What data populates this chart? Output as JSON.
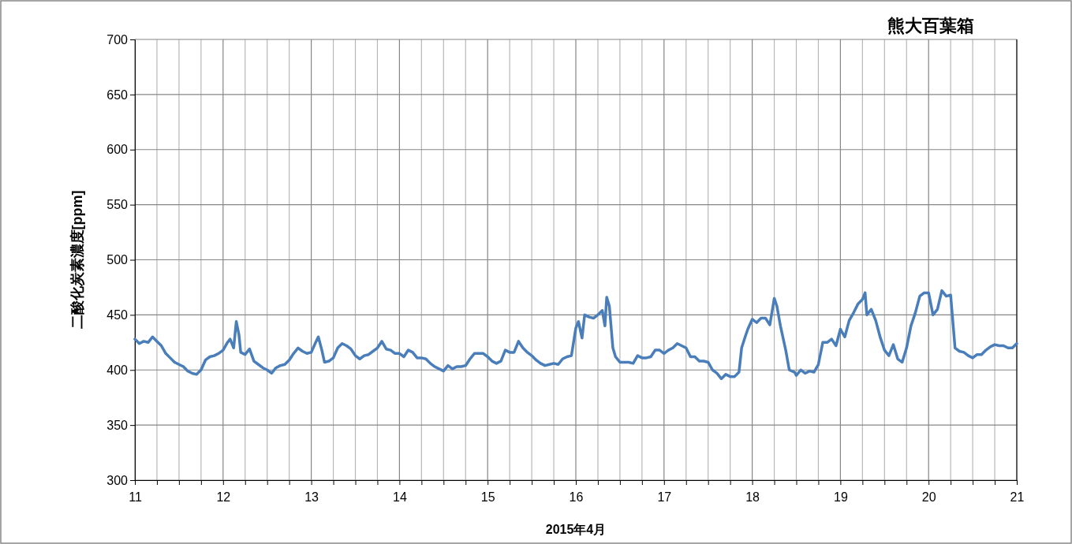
{
  "chart_data": {
    "type": "line",
    "title": "熊大百葉箱",
    "xlabel": "2015年4月",
    "ylabel": "二酸化炭素濃度[ppm]",
    "grid": true,
    "marker": "none",
    "line_style": "solid",
    "xlim": [
      11,
      21
    ],
    "ylim": [
      300,
      700
    ],
    "xticks": [
      11,
      {
        "value": 11.25,
        "label": null
      },
      {
        "value": 11.5,
        "label": null
      },
      {
        "value": 11.75,
        "label": null
      },
      12,
      {
        "value": 12.25,
        "label": null
      },
      {
        "value": 12.5,
        "label": null
      },
      {
        "value": 12.75,
        "label": null
      },
      13,
      {
        "value": 13.25,
        "label": null
      },
      {
        "value": 13.5,
        "label": null
      },
      {
        "value": 13.75,
        "label": null
      },
      14,
      {
        "value": 14.25,
        "label": null
      },
      {
        "value": 14.5,
        "label": null
      },
      {
        "value": 14.75,
        "label": null
      },
      15,
      {
        "value": 15.25,
        "label": null
      },
      {
        "value": 15.5,
        "label": null
      },
      {
        "value": 15.75,
        "label": null
      },
      16,
      {
        "value": 16.25,
        "label": null
      },
      {
        "value": 16.5,
        "label": null
      },
      {
        "value": 16.75,
        "label": null
      },
      17,
      {
        "value": 17.25,
        "label": null
      },
      {
        "value": 17.5,
        "label": null
      },
      {
        "value": 17.75,
        "label": null
      },
      18,
      {
        "value": 18.25,
        "label": null
      },
      {
        "value": 18.5,
        "label": null
      },
      {
        "value": 18.75,
        "label": null
      },
      19,
      {
        "value": 19.25,
        "label": null
      },
      {
        "value": 19.5,
        "label": null
      },
      {
        "value": 19.75,
        "label": null
      },
      20,
      {
        "value": 20.25,
        "label": null
      },
      {
        "value": 20.5,
        "label": null
      },
      {
        "value": 20.75,
        "label": null
      },
      21
    ],
    "yticks": [
      300,
      350,
      400,
      450,
      500,
      550,
      600,
      650,
      700
    ],
    "x": [
      11.0,
      11.05,
      11.1,
      11.15,
      11.2,
      11.25,
      11.3,
      11.35,
      11.4,
      11.45,
      11.5,
      11.55,
      11.6,
      11.65,
      11.7,
      11.75,
      11.8,
      11.85,
      11.9,
      11.95,
      12.0,
      12.05,
      12.08,
      12.12,
      12.15,
      12.18,
      12.2,
      12.25,
      12.3,
      12.35,
      12.4,
      12.45,
      12.5,
      12.55,
      12.6,
      12.65,
      12.7,
      12.75,
      12.8,
      12.85,
      12.9,
      12.95,
      13.0,
      13.05,
      13.08,
      13.12,
      13.15,
      13.2,
      13.25,
      13.3,
      13.35,
      13.4,
      13.45,
      13.5,
      13.55,
      13.6,
      13.65,
      13.7,
      13.75,
      13.8,
      13.85,
      13.9,
      13.95,
      14.0,
      14.05,
      14.1,
      14.15,
      14.2,
      14.25,
      14.3,
      14.35,
      14.4,
      14.45,
      14.5,
      14.55,
      14.6,
      14.65,
      14.7,
      14.75,
      14.8,
      14.85,
      14.9,
      14.95,
      15.0,
      15.05,
      15.1,
      15.15,
      15.2,
      15.25,
      15.3,
      15.35,
      15.4,
      15.45,
      15.5,
      15.55,
      15.6,
      15.65,
      15.7,
      15.75,
      15.8,
      15.85,
      15.9,
      15.95,
      16.0,
      16.03,
      16.07,
      16.1,
      16.15,
      16.2,
      16.25,
      16.3,
      16.33,
      16.35,
      16.38,
      16.42,
      16.45,
      16.5,
      16.55,
      16.6,
      16.65,
      16.7,
      16.75,
      16.8,
      16.85,
      16.9,
      16.95,
      17.0,
      17.05,
      17.1,
      17.15,
      17.2,
      17.25,
      17.3,
      17.35,
      17.4,
      17.45,
      17.5,
      17.55,
      17.6,
      17.65,
      17.7,
      17.75,
      17.8,
      17.85,
      17.88,
      17.92,
      17.95,
      18.0,
      18.05,
      18.1,
      18.15,
      18.2,
      18.25,
      18.28,
      18.32,
      18.38,
      18.42,
      18.48,
      18.5,
      18.55,
      18.6,
      18.65,
      18.7,
      18.75,
      18.8,
      18.85,
      18.9,
      18.95,
      19.0,
      19.05,
      19.1,
      19.15,
      19.2,
      19.25,
      19.28,
      19.3,
      19.35,
      19.4,
      19.45,
      19.5,
      19.55,
      19.6,
      19.65,
      19.7,
      19.75,
      19.8,
      19.85,
      19.9,
      19.95,
      20.0,
      20.05,
      20.1,
      20.15,
      20.2,
      20.25,
      20.3,
      20.35,
      20.4,
      20.45,
      20.5,
      20.55,
      20.6,
      20.65,
      20.7,
      20.75,
      20.8,
      20.85,
      20.9,
      20.95,
      21.0
    ],
    "series": [
      {
        "color": "#4a7ebb",
        "values": [
          428,
          424,
          426,
          425,
          430,
          426,
          422,
          415,
          411,
          407,
          405,
          403,
          399,
          397,
          396,
          400,
          409,
          412,
          413,
          415,
          418,
          425,
          428,
          420,
          444,
          432,
          416,
          414,
          419,
          408,
          405,
          402,
          400,
          397,
          402,
          404,
          405,
          409,
          415,
          420,
          417,
          415,
          416,
          425,
          430,
          418,
          407,
          408,
          411,
          420,
          424,
          422,
          419,
          413,
          410,
          413,
          414,
          417,
          420,
          426,
          419,
          418,
          415,
          415,
          412,
          418,
          416,
          411,
          411,
          410,
          406,
          403,
          401,
          399,
          404,
          401,
          403,
          403,
          404,
          410,
          415,
          415,
          415,
          412,
          408,
          406,
          408,
          418,
          416,
          416,
          426,
          420,
          416,
          413,
          409,
          406,
          404,
          405,
          406,
          405,
          410,
          412,
          413,
          438,
          444,
          429,
          450,
          448,
          447,
          450,
          454,
          440,
          466,
          458,
          420,
          412,
          407,
          407,
          407,
          406,
          413,
          411,
          411,
          412,
          418,
          418,
          415,
          418,
          420,
          424,
          422,
          420,
          412,
          412,
          408,
          408,
          407,
          400,
          397,
          392,
          396,
          394,
          394,
          398,
          420,
          430,
          437,
          446,
          443,
          447,
          447,
          441,
          465,
          458,
          440,
          418,
          400,
          398,
          395,
          400,
          397,
          399,
          398,
          405,
          425,
          425,
          428,
          422,
          437,
          430,
          445,
          452,
          460,
          464,
          470,
          450,
          455,
          445,
          430,
          418,
          413,
          423,
          410,
          407,
          420,
          440,
          452,
          467,
          470,
          470,
          450,
          455,
          472,
          467,
          468,
          420,
          417,
          416,
          413,
          411,
          414,
          414,
          418,
          421,
          423,
          422,
          422,
          420,
          420,
          424
        ]
      }
    ]
  }
}
